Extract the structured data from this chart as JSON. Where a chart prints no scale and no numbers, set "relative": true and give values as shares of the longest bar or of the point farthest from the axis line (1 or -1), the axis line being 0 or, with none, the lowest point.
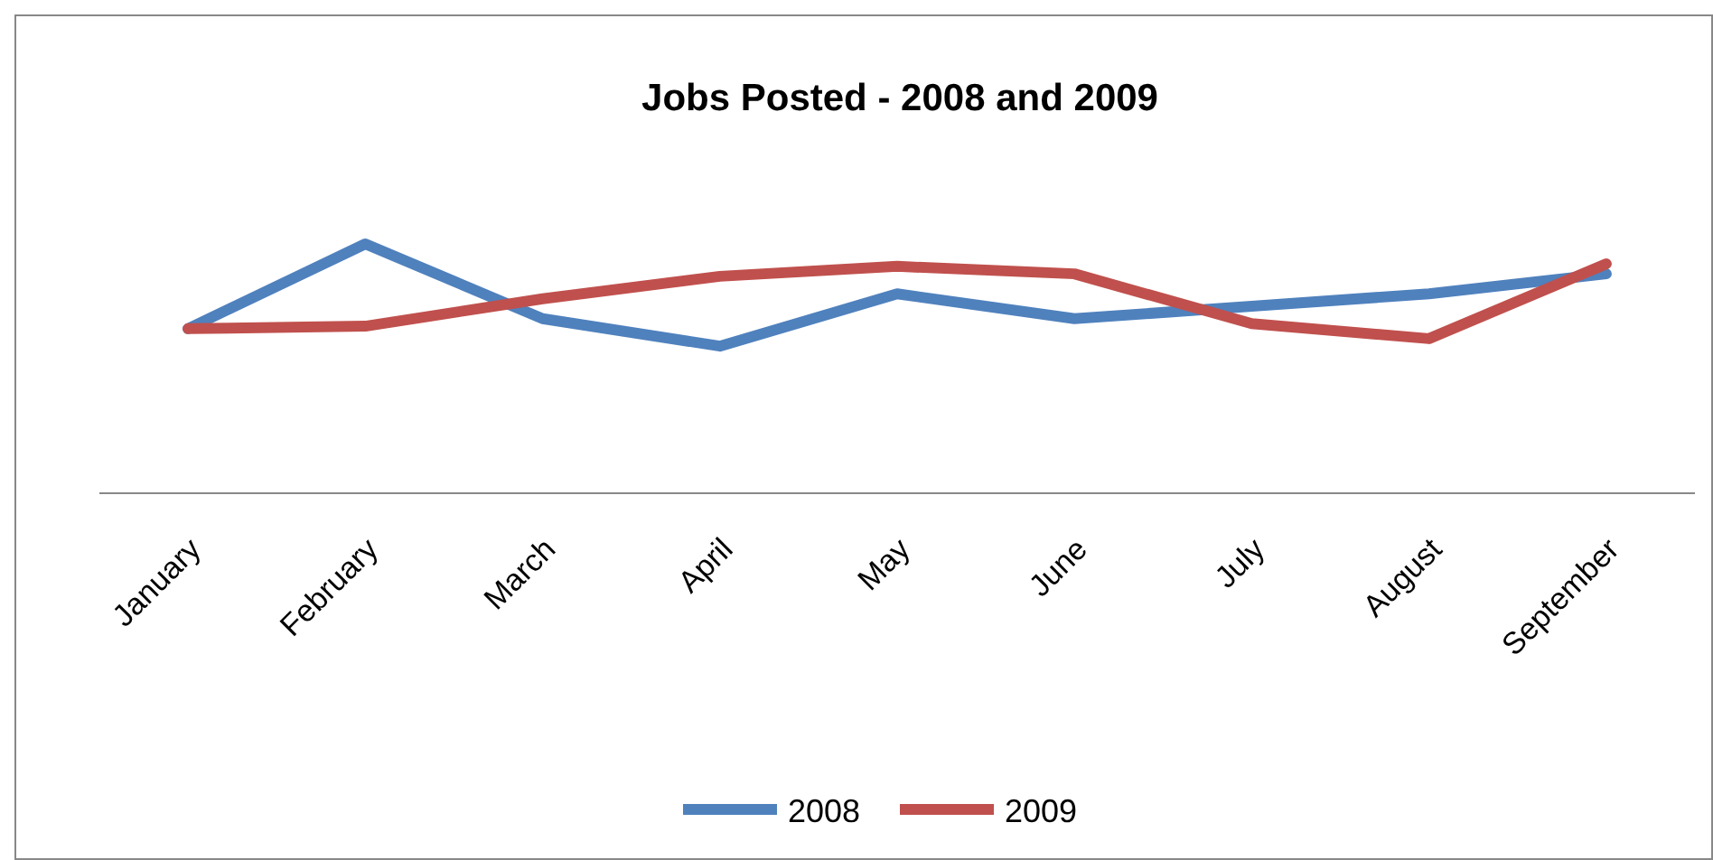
{
  "chart_data": {
    "type": "line",
    "title": "Jobs Posted - 2008 and 2009",
    "relative": true,
    "categories": [
      "January",
      "February",
      "March",
      "April",
      "May",
      "June",
      "July",
      "August",
      "September"
    ],
    "series": [
      {
        "name": "2008",
        "color": "#4f81bd",
        "values": [
          0.66,
          1,
          0.7,
          0.59,
          0.8,
          0.7,
          0.75,
          0.8,
          0.88
        ]
      },
      {
        "name": "2009",
        "color": "#c0504d",
        "values": [
          0.66,
          0.67,
          0.78,
          0.87,
          0.91,
          0.88,
          0.68,
          0.62,
          0.92
        ]
      }
    ],
    "legend": "bottom",
    "marker": "none",
    "line_style": "solid"
  }
}
